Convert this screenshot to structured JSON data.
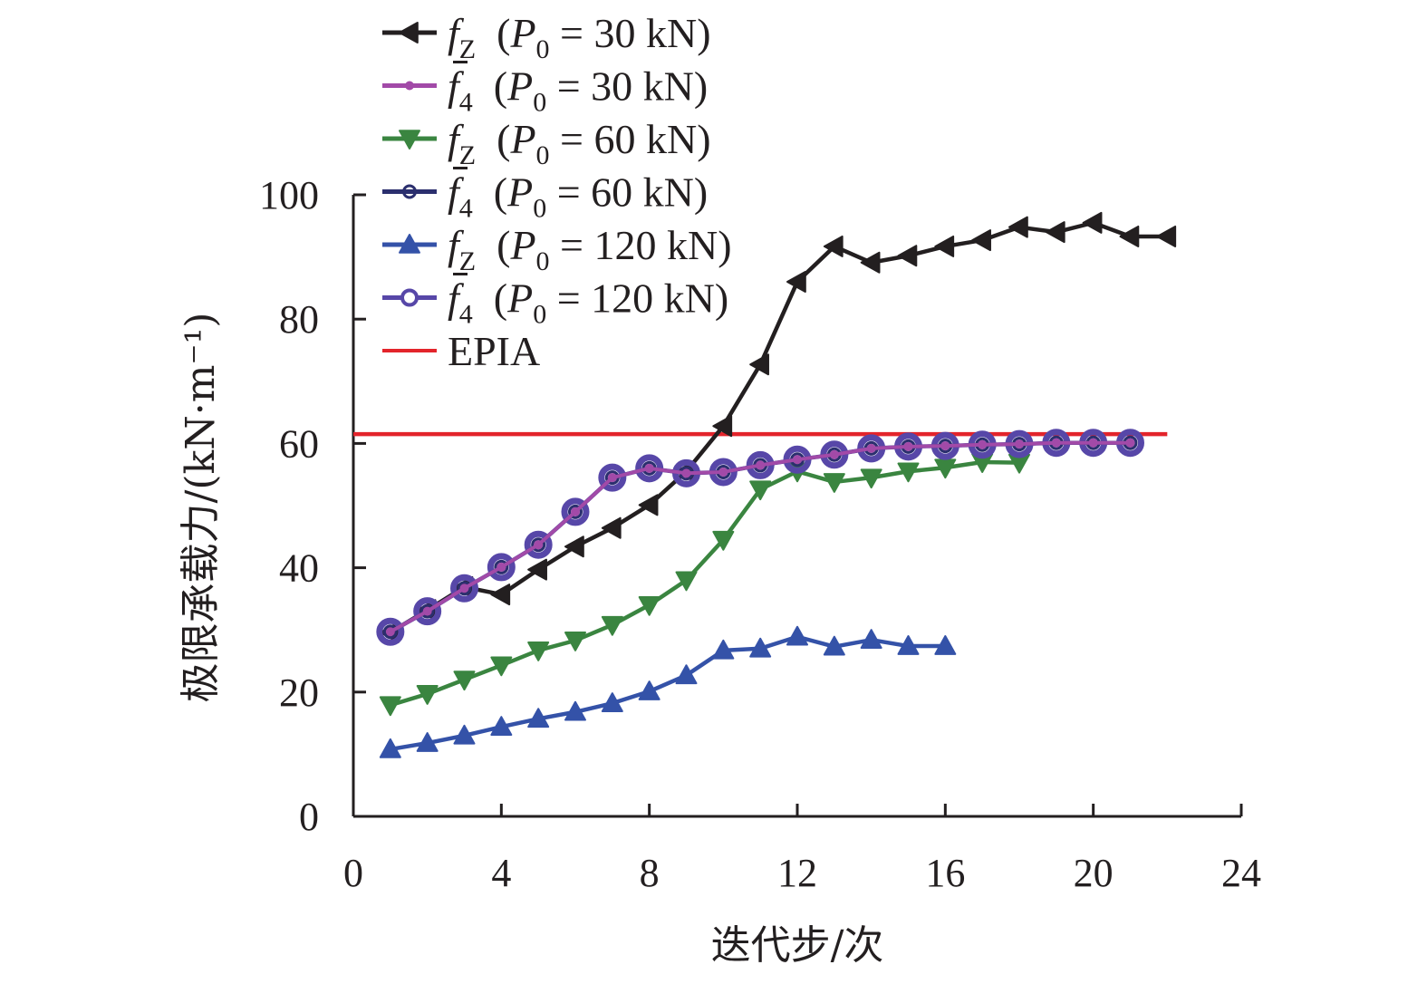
{
  "chart_data": {
    "type": "line",
    "title": "",
    "xlabel": "迭代步/次",
    "ylabel": "极限承载力/(kN·m⁻¹)",
    "xlim": [
      0,
      24
    ],
    "ylim": [
      0,
      100
    ],
    "xticks": [
      0,
      4,
      8,
      12,
      16,
      20,
      24
    ],
    "yticks": [
      0,
      20,
      40,
      60,
      80,
      100
    ],
    "grid": false,
    "legend_position": "top-left",
    "series": [
      {
        "name": "f_Z (P_0 = 30 kN)",
        "legend": {
          "symbol": "f",
          "bar": false,
          "sub": "Z",
          "paren": "(",
          "p": "P",
          "psub": "0",
          "rest": " = 30 kN)"
        },
        "color": "#231f20",
        "marker": "triangle-left",
        "x": [
          1,
          2,
          3,
          4,
          5,
          6,
          7,
          8,
          9,
          10,
          11,
          12,
          13,
          14,
          15,
          16,
          17,
          18,
          19,
          20,
          21,
          22
        ],
        "y": [
          29.6,
          33.2,
          36.9,
          35.7,
          39.7,
          43.4,
          46.4,
          50.1,
          55.5,
          62.8,
          72.7,
          86.0,
          91.7,
          89.1,
          90.2,
          91.7,
          92.7,
          94.8,
          94.0,
          95.5,
          93.3,
          93.3
        ]
      },
      {
        "name": "f̄_4 (P_0 = 30 kN)",
        "legend": {
          "symbol": "f",
          "bar": true,
          "sub": "4",
          "paren": "(",
          "p": "P",
          "psub": "0",
          "rest": " = 30 kN)"
        },
        "color": "#a24aa8",
        "marker": "dot",
        "x": [
          1,
          2,
          3,
          4,
          5,
          6,
          7,
          8,
          9,
          10,
          11,
          12,
          13,
          14,
          15,
          16,
          17,
          18,
          19,
          20,
          21
        ],
        "y": [
          29.7,
          33.0,
          36.7,
          40.1,
          43.7,
          49.0,
          54.5,
          56.0,
          55.2,
          55.4,
          56.5,
          57.4,
          58.2,
          59.2,
          59.5,
          59.6,
          59.8,
          59.9,
          60.1,
          60.1,
          60.1
        ]
      },
      {
        "name": "f_Z (P_0 = 60 kN)",
        "legend": {
          "symbol": "f",
          "bar": false,
          "sub": "Z",
          "paren": "(",
          "p": "P",
          "psub": "0",
          "rest": " = 60 kN)"
        },
        "color": "#3a8540",
        "marker": "triangle-down",
        "x": [
          1,
          2,
          3,
          4,
          5,
          6,
          7,
          8,
          9,
          10,
          11,
          12,
          13,
          14,
          15,
          16,
          17,
          18
        ],
        "y": [
          17.9,
          19.7,
          22.0,
          24.3,
          26.7,
          28.3,
          30.8,
          34.0,
          38.0,
          44.5,
          52.6,
          55.5,
          53.8,
          54.5,
          55.5,
          56.1,
          57.0,
          56.9
        ]
      },
      {
        "name": "f̄_4 (P_0 = 60 kN)",
        "legend": {
          "symbol": "f",
          "bar": true,
          "sub": "4",
          "paren": "(",
          "p": "P",
          "psub": "0",
          "rest": " = 60 kN)"
        },
        "color": "#2b2f6e",
        "marker": "small-circle",
        "x": [
          1,
          2,
          3,
          4,
          5,
          6,
          7,
          8,
          9,
          10,
          11,
          12,
          13,
          14,
          15,
          16,
          17,
          18,
          19,
          20,
          21
        ],
        "y": [
          29.7,
          33.0,
          36.7,
          40.1,
          43.7,
          49.0,
          54.5,
          56.0,
          55.2,
          55.4,
          56.5,
          57.4,
          58.2,
          59.2,
          59.5,
          59.6,
          59.8,
          59.9,
          60.1,
          60.1,
          60.1
        ]
      },
      {
        "name": "f_Z (P_0 = 120 kN)",
        "legend": {
          "symbol": "f",
          "bar": false,
          "sub": "Z",
          "paren": "(",
          "p": "P",
          "psub": "0",
          "rest": " = 120 kN)"
        },
        "color": "#3452a8",
        "marker": "triangle-up",
        "x": [
          1,
          2,
          3,
          4,
          5,
          6,
          7,
          8,
          9,
          10,
          11,
          12,
          13,
          14,
          15,
          16
        ],
        "y": [
          10.8,
          11.8,
          13.0,
          14.4,
          15.7,
          16.8,
          18.2,
          20.1,
          22.7,
          26.7,
          27.0,
          28.9,
          27.3,
          28.4,
          27.4,
          27.4
        ]
      },
      {
        "name": "f̄_4 (P_0 = 120 kN)",
        "legend": {
          "symbol": "f",
          "bar": true,
          "sub": "4",
          "paren": "(",
          "p": "P",
          "psub": "0",
          "rest": " = 120 kN)"
        },
        "color": "#5747a8",
        "marker": "open-circle",
        "x": [
          1,
          2,
          3,
          4,
          5,
          6,
          7,
          8,
          9,
          10,
          11,
          12,
          13,
          14,
          15,
          16,
          17,
          18,
          19,
          20,
          21
        ],
        "y": [
          29.7,
          33.0,
          36.7,
          40.1,
          43.7,
          49.0,
          54.5,
          56.0,
          55.2,
          55.4,
          56.5,
          57.4,
          58.2,
          59.2,
          59.5,
          59.6,
          59.8,
          59.9,
          60.1,
          60.1,
          60.1
        ]
      },
      {
        "name": "EPIA",
        "legend": {
          "text": "EPIA"
        },
        "color": "#e3242b",
        "marker": "none",
        "x": [
          0,
          22
        ],
        "y": [
          61.5,
          61.5
        ]
      }
    ]
  }
}
